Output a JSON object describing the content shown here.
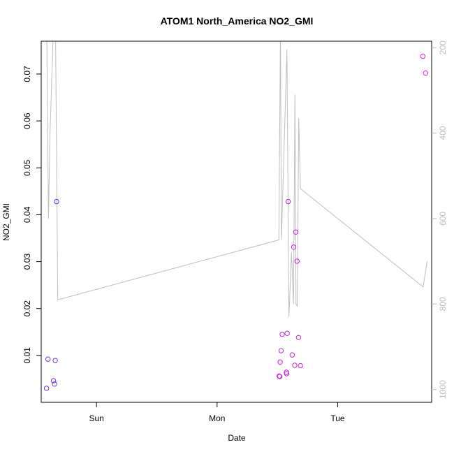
{
  "chart_data": {
    "type": "scatter",
    "title": "ATOM1 North_America NO2_GMI",
    "xlabel": "Date",
    "ylabel": "NO2_GMI",
    "x_ticks": [
      {
        "label": "Sun",
        "hour": 24
      },
      {
        "label": "Mon",
        "hour": 48
      },
      {
        "label": "Tue",
        "hour": 72
      }
    ],
    "x_range_hours": [
      13.0,
      90.7
    ],
    "ylim": [
      0.0,
      0.077
    ],
    "y_ticks": [
      0.01,
      0.02,
      0.03,
      0.04,
      0.05,
      0.06,
      0.07
    ],
    "y2_range": [
      1030,
      185
    ],
    "y2_ticks": [
      200,
      400,
      600,
      800,
      1000
    ],
    "line_color": "#bebebe",
    "color_start": "#7b2be0",
    "color_end": "#e61fd0",
    "series": [
      {
        "values": [
          {
            "hour": 14.05,
            "y": 0.003
          },
          {
            "hour": 14.35,
            "y": 0.0092
          },
          {
            "hour": 15.45,
            "y": 0.0046
          },
          {
            "hour": 15.65,
            "y": 0.0039
          },
          {
            "hour": 15.8,
            "y": 0.0089
          },
          {
            "hour": 16.05,
            "y": 0.0428
          },
          {
            "hour": 60.35,
            "y": 0.0056
          },
          {
            "hour": 60.5,
            "y": 0.0055
          },
          {
            "hour": 60.55,
            "y": 0.0086
          },
          {
            "hour": 60.75,
            "y": 0.011
          },
          {
            "hour": 60.95,
            "y": 0.0145
          },
          {
            "hour": 61.8,
            "y": 0.0064
          },
          {
            "hour": 61.85,
            "y": 0.0061
          },
          {
            "hour": 61.95,
            "y": 0.0147
          },
          {
            "hour": 62.15,
            "y": 0.0428
          },
          {
            "hour": 62.95,
            "y": 0.0101
          },
          {
            "hour": 63.25,
            "y": 0.0331
          },
          {
            "hour": 63.45,
            "y": 0.0079
          },
          {
            "hour": 63.65,
            "y": 0.0363
          },
          {
            "hour": 63.9,
            "y": 0.0301
          },
          {
            "hour": 64.2,
            "y": 0.0138
          },
          {
            "hour": 64.6,
            "y": 0.0078
          },
          {
            "hour": 88.95,
            "y": 0.0738
          },
          {
            "hour": 89.5,
            "y": 0.0702
          }
        ]
      }
    ],
    "pressure_line": [
      {
        "hour": 14.1,
        "p": 160
      },
      {
        "hour": 14.45,
        "p": 600
      },
      {
        "hour": 14.75,
        "p": 400
      },
      {
        "hour": 15.35,
        "p": 185
      },
      {
        "hour": 15.85,
        "p": 160
      },
      {
        "hour": 16.3,
        "p": 790
      },
      {
        "hour": 60.3,
        "p": 650
      },
      {
        "hour": 60.6,
        "p": 160
      },
      {
        "hour": 60.8,
        "p": 650
      },
      {
        "hour": 61.9,
        "p": 205
      },
      {
        "hour": 62.3,
        "p": 830
      },
      {
        "hour": 62.8,
        "p": 680
      },
      {
        "hour": 63.2,
        "p": 800
      },
      {
        "hour": 63.5,
        "p": 310
      },
      {
        "hour": 63.7,
        "p": 800
      },
      {
        "hour": 63.95,
        "p": 805
      },
      {
        "hour": 64.25,
        "p": 365
      },
      {
        "hour": 64.6,
        "p": 530
      },
      {
        "hour": 89.0,
        "p": 760
      },
      {
        "hour": 89.8,
        "p": 700
      }
    ]
  }
}
